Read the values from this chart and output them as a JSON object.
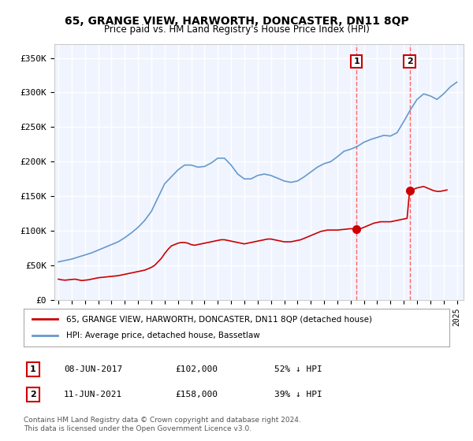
{
  "title": "65, GRANGE VIEW, HARWORTH, DONCASTER, DN11 8QP",
  "subtitle": "Price paid vs. HM Land Registry's House Price Index (HPI)",
  "ylabel_ticks": [
    "£0",
    "£50K",
    "£100K",
    "£150K",
    "£200K",
    "£250K",
    "£300K",
    "£350K"
  ],
  "ylim": [
    0,
    370000
  ],
  "xlim_start": 1995.0,
  "xlim_end": 2025.5,
  "background_color": "#ffffff",
  "plot_bg_color": "#f0f4ff",
  "grid_color": "#ffffff",
  "transaction1_date": 2017.44,
  "transaction1_price": 102000,
  "transaction1_label": "1",
  "transaction2_date": 2021.44,
  "transaction2_price": 158000,
  "transaction2_label": "2",
  "red_line_color": "#cc0000",
  "blue_line_color": "#6699cc",
  "marker_color_red": "#cc0000",
  "vline_color": "#ff6666",
  "legend1_text": "65, GRANGE VIEW, HARWORTH, DONCASTER, DN11 8QP (detached house)",
  "legend2_text": "HPI: Average price, detached house, Bassetlaw",
  "annotation1_date": "08-JUN-2017",
  "annotation1_price": "£102,000",
  "annotation1_pct": "52% ↓ HPI",
  "annotation2_date": "11-JUN-2021",
  "annotation2_price": "£158,000",
  "annotation2_pct": "39% ↓ HPI",
  "footer": "Contains HM Land Registry data © Crown copyright and database right 2024.\nThis data is licensed under the Open Government Licence v3.0.",
  "hpi_years": [
    1995,
    1995.5,
    1996,
    1996.5,
    1997,
    1997.5,
    1998,
    1998.5,
    1999,
    1999.5,
    2000,
    2000.5,
    2001,
    2001.5,
    2002,
    2002.5,
    2003,
    2003.5,
    2004,
    2004.5,
    2005,
    2005.5,
    2006,
    2006.5,
    2007,
    2007.5,
    2008,
    2008.5,
    2009,
    2009.5,
    2010,
    2010.5,
    2011,
    2011.5,
    2012,
    2012.5,
    2013,
    2013.5,
    2014,
    2014.5,
    2015,
    2015.5,
    2016,
    2016.5,
    2017,
    2017.5,
    2018,
    2018.5,
    2019,
    2019.5,
    2020,
    2020.5,
    2021,
    2021.5,
    2022,
    2022.5,
    2023,
    2023.5,
    2024,
    2024.5,
    2025
  ],
  "hpi_values": [
    55000,
    57000,
    59000,
    62000,
    65000,
    68000,
    72000,
    76000,
    80000,
    84000,
    90000,
    97000,
    105000,
    115000,
    128000,
    148000,
    168000,
    178000,
    188000,
    195000,
    195000,
    192000,
    193000,
    198000,
    205000,
    205000,
    195000,
    182000,
    175000,
    175000,
    180000,
    182000,
    180000,
    176000,
    172000,
    170000,
    172000,
    178000,
    185000,
    192000,
    197000,
    200000,
    207000,
    215000,
    218000,
    222000,
    228000,
    232000,
    235000,
    238000,
    237000,
    242000,
    258000,
    275000,
    290000,
    298000,
    295000,
    290000,
    298000,
    308000,
    315000
  ],
  "price_years": [
    1995,
    1995.25,
    1995.5,
    1995.75,
    1996,
    1996.25,
    1996.5,
    1996.75,
    1997,
    1997.25,
    1997.5,
    1997.75,
    1998,
    1998.25,
    1998.5,
    1998.75,
    1999,
    1999.25,
    1999.5,
    1999.75,
    2000,
    2000.25,
    2000.5,
    2000.75,
    2001,
    2001.25,
    2001.5,
    2001.75,
    2002,
    2002.25,
    2002.5,
    2002.75,
    2003,
    2003.25,
    2003.5,
    2003.75,
    2004,
    2004.25,
    2004.5,
    2004.75,
    2005,
    2005.25,
    2005.5,
    2005.75,
    2006,
    2006.25,
    2006.5,
    2006.75,
    2007,
    2007.25,
    2007.5,
    2007.75,
    2008,
    2008.25,
    2008.5,
    2008.75,
    2009,
    2009.25,
    2009.5,
    2009.75,
    2010,
    2010.25,
    2010.5,
    2010.75,
    2011,
    2011.25,
    2011.5,
    2011.75,
    2012,
    2012.25,
    2012.5,
    2012.75,
    2013,
    2013.25,
    2013.5,
    2013.75,
    2014,
    2014.25,
    2014.5,
    2014.75,
    2015,
    2015.25,
    2015.5,
    2015.75,
    2016,
    2016.25,
    2016.5,
    2016.75,
    2017,
    2017.25,
    2017.44,
    2017.75,
    2018,
    2018.25,
    2018.5,
    2018.75,
    2019,
    2019.25,
    2019.5,
    2019.75,
    2020,
    2020.25,
    2020.5,
    2020.75,
    2021,
    2021.25,
    2021.44,
    2021.75,
    2022,
    2022.25,
    2022.5,
    2022.75,
    2023,
    2023.25,
    2023.5,
    2023.75,
    2024,
    2024.25
  ],
  "price_values": [
    30000,
    29000,
    28500,
    29000,
    29500,
    30000,
    29000,
    28000,
    28500,
    29000,
    30000,
    31000,
    32000,
    32500,
    33000,
    33500,
    34000,
    34500,
    35000,
    36000,
    37000,
    38000,
    39000,
    40000,
    41000,
    42000,
    43000,
    45000,
    47000,
    50000,
    55000,
    60000,
    67000,
    73000,
    78000,
    80000,
    82000,
    83000,
    83000,
    82000,
    80000,
    79000,
    80000,
    81000,
    82000,
    83000,
    84000,
    85000,
    86000,
    87000,
    87000,
    86000,
    85000,
    84000,
    83000,
    82000,
    81000,
    82000,
    83000,
    84000,
    85000,
    86000,
    87000,
    88000,
    88000,
    87000,
    86000,
    85000,
    84000,
    84000,
    84000,
    85000,
    86000,
    87000,
    89000,
    91000,
    93000,
    95000,
    97000,
    99000,
    100000,
    101000,
    101000,
    101000,
    101000,
    101500,
    102000,
    102500,
    103000,
    102500,
    102000,
    103000,
    105000,
    107000,
    109000,
    111000,
    112000,
    113000,
    113000,
    113000,
    113000,
    114000,
    115000,
    116000,
    117000,
    118000,
    158000,
    160000,
    162000,
    163000,
    164000,
    162000,
    160000,
    158000,
    157000,
    157000,
    158000,
    159000
  ]
}
